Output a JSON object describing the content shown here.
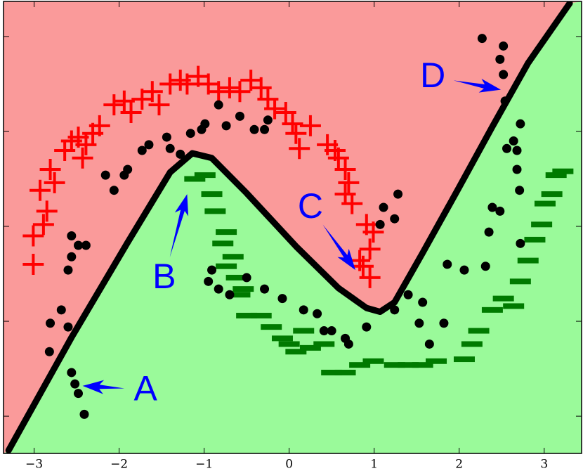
{
  "chart_data": {
    "type": "scatter",
    "xlim": [
      -3.36,
      3.44
    ],
    "ylim": [
      -1.196,
      1.185
    ],
    "xticks": [
      {
        "value": -3,
        "label": "−3"
      },
      {
        "value": -2,
        "label": "−2"
      },
      {
        "value": -1,
        "label": "−1"
      },
      0,
      1,
      2,
      3
    ],
    "yticks": [
      -1,
      -0.5,
      0,
      0.5,
      1
    ],
    "regions": {
      "above": "#fa9a9a",
      "below": "#9afa9a"
    },
    "boundary": {
      "color": "#000000",
      "x": [
        -3.3,
        -2.56,
        -1.9,
        -1.4,
        -1.14,
        -0.91,
        -0.5,
        0.08,
        0.58,
        0.91,
        1.07,
        1.24,
        1.57,
        1.98,
        2.39,
        2.81,
        3.3
      ],
      "y": [
        -1.18,
        -0.585,
        -0.085,
        0.285,
        0.385,
        0.36,
        0.175,
        -0.105,
        -0.325,
        -0.43,
        -0.45,
        -0.4,
        -0.14,
        0.19,
        0.525,
        0.86,
        1.175
      ]
    },
    "series": [
      {
        "marker": "plus",
        "color": "#ff0000",
        "x": [
          -3.01,
          -2.89,
          -3.01,
          -2.85,
          -2.93,
          -2.76,
          -2.81,
          -2.64,
          -2.56,
          -2.48,
          -2.39,
          -2.31,
          -2.43,
          -2.23,
          -2.06,
          -1.94,
          -1.86,
          -1.73,
          -1.61,
          -1.53,
          -1.4,
          -1.28,
          -1.2,
          -1.07,
          -0.95,
          -0.83,
          -0.7,
          -0.58,
          -0.45,
          -0.33,
          -0.25,
          -0.17,
          -0.04,
          0.04,
          0.08,
          0.25,
          0.12,
          0.45,
          0.54,
          0.58,
          0.66,
          0.7,
          0.66,
          0.74,
          0.91,
          0.99,
          0.95,
          0.87,
          0.95,
          0.83
        ],
        "y": [
          -0.05,
          0.01,
          -0.2,
          0.08,
          0.19,
          0.23,
          0.3,
          0.4,
          0.45,
          0.47,
          0.43,
          0.49,
          0.36,
          0.53,
          0.64,
          0.66,
          0.6,
          0.67,
          0.71,
          0.64,
          0.75,
          0.77,
          0.75,
          0.79,
          0.75,
          0.71,
          0.73,
          0.71,
          0.77,
          0.73,
          0.67,
          0.62,
          0.6,
          0.54,
          0.49,
          0.53,
          0.41,
          0.43,
          0.4,
          0.36,
          0.3,
          0.23,
          0.17,
          0.12,
          0.01,
          -0.03,
          -0.12,
          -0.21,
          -0.27,
          -0.18
        ]
      },
      {
        "marker": "dash",
        "color": "#007a00",
        "x": [
          -1.11,
          -0.99,
          -0.91,
          -0.87,
          -0.74,
          -0.78,
          -0.66,
          -0.74,
          -0.62,
          -0.54,
          -0.58,
          -0.33,
          -0.21,
          -0.08,
          0.0,
          0.08,
          0.25,
          0.41,
          0.5,
          0.66,
          0.83,
          0.99,
          1.24,
          1.4,
          1.57,
          1.73,
          2.06,
          2.15,
          2.23,
          2.39,
          2.52,
          2.64,
          2.72,
          2.81,
          2.89,
          2.97,
          3.01,
          3.09,
          3.14,
          3.22,
          0.17,
          -0.5
        ],
        "y": [
          0.25,
          0.27,
          0.17,
          0.08,
          -0.03,
          -0.09,
          -0.16,
          -0.21,
          -0.27,
          -0.33,
          -0.36,
          -0.47,
          -0.53,
          -0.59,
          -0.62,
          -0.66,
          -0.64,
          -0.62,
          -0.77,
          -0.77,
          -0.73,
          -0.71,
          -0.73,
          -0.73,
          -0.73,
          -0.71,
          -0.7,
          -0.62,
          -0.55,
          -0.44,
          -0.38,
          -0.42,
          -0.29,
          -0.18,
          -0.07,
          0.01,
          0.12,
          0.17,
          0.27,
          0.29,
          -0.55,
          -0.47
        ]
      },
      {
        "marker": "dot",
        "color": "#000000",
        "x": [
          -2.81,
          -2.82,
          -2.68,
          -2.6,
          -2.56,
          -2.52,
          -2.48,
          -2.41,
          -2.56,
          -2.56,
          -2.6,
          -2.48,
          -2.39,
          -2.16,
          -2.06,
          -1.94,
          -1.9,
          -1.73,
          -1.65,
          -1.44,
          -1.4,
          -1.28,
          -1.16,
          -0.99,
          -1.03,
          -0.83,
          -0.74,
          -0.58,
          -0.41,
          -0.29,
          -0.25,
          -0.91,
          -0.95,
          -0.83,
          -0.7,
          -0.5,
          -0.29,
          -0.08,
          0.17,
          0.33,
          0.41,
          0.5,
          0.66,
          0.7,
          0.91,
          1.11,
          1.24,
          1.28,
          1.07,
          1.24,
          1.4,
          1.57,
          1.53,
          1.65,
          1.82,
          1.86,
          2.06,
          2.31,
          2.35,
          2.39,
          2.48,
          2.56,
          2.64,
          2.68,
          2.68,
          2.71,
          2.72,
          2.27,
          2.52,
          2.48,
          2.52,
          2.54,
          2.72
        ],
        "y": [
          -0.51,
          -0.66,
          -0.44,
          -0.53,
          -0.77,
          -0.83,
          -0.88,
          -0.99,
          -0.05,
          -0.16,
          -0.23,
          -0.1,
          -0.1,
          0.27,
          0.19,
          0.27,
          0.3,
          0.4,
          0.43,
          0.47,
          0.41,
          0.38,
          0.49,
          0.54,
          0.51,
          0.64,
          0.53,
          0.58,
          0.51,
          0.51,
          0.56,
          -0.23,
          -0.29,
          -0.33,
          -0.36,
          -0.27,
          -0.33,
          -0.38,
          -0.44,
          -0.46,
          -0.55,
          -0.55,
          -0.59,
          -0.62,
          -0.53,
          0.1,
          0.04,
          0.17,
          0.01,
          -0.44,
          -0.36,
          -0.4,
          -0.51,
          -0.62,
          -0.51,
          -0.2,
          -0.23,
          -0.21,
          -0.03,
          0.1,
          0.08,
          0.41,
          0.45,
          0.4,
          0.3,
          0.19,
          -0.09,
          0.99,
          0.95,
          0.88,
          0.8,
          0.66,
          0.54
        ]
      }
    ],
    "annotations": [
      {
        "text": "A",
        "xy": [
          -2.43,
          -0.84
        ],
        "xytext": [
          -1.69,
          -0.86
        ]
      },
      {
        "text": "B",
        "xy": [
          -1.2,
          0.17
        ],
        "xytext": [
          -1.47,
          -0.27
        ]
      },
      {
        "text": "C",
        "xy": [
          0.78,
          -0.23
        ],
        "xytext": [
          0.25,
          0.1
        ]
      },
      {
        "text": "D",
        "xy": [
          2.49,
          0.72
        ],
        "xytext": [
          1.69,
          0.79
        ]
      }
    ],
    "annotation_color": "#0000ff"
  }
}
